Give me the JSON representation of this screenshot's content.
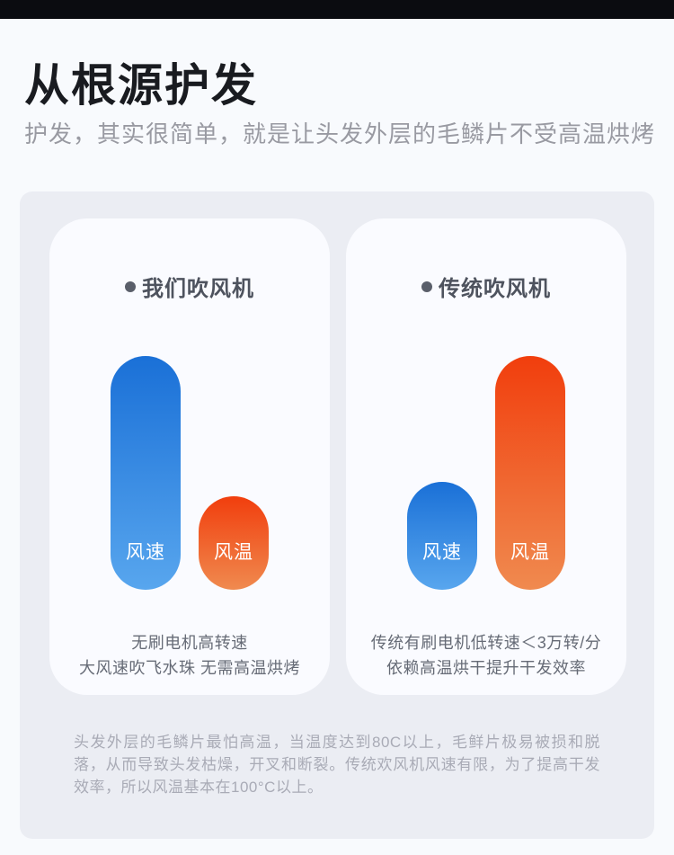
{
  "header": {
    "title": "从根源护发",
    "subtitle": "护发，其实很简单，就是让头发外层的毛鳞片不受高温烘烤"
  },
  "cards": [
    {
      "title": "我们吹风机",
      "bars": [
        {
          "label": "风速",
          "value": 100,
          "color_top": "#1a70d7",
          "color_bottom": "#58a6ee"
        },
        {
          "label": "风温",
          "value": 40,
          "color_top": "#f13e0d",
          "color_bottom": "#f08a4f"
        }
      ],
      "caption_line1": "无刷电机高转速",
      "caption_line2": "大风速吹飞水珠 无需高温烘烤"
    },
    {
      "title": "传统吹风机",
      "bars": [
        {
          "label": "风速",
          "value": 46,
          "color_top": "#1a70d7",
          "color_bottom": "#58a6ee"
        },
        {
          "label": "风温",
          "value": 100,
          "color_top": "#f13e0d",
          "color_bottom": "#f08a4f"
        }
      ],
      "caption_line1": "传统有刷电机低转速＜3万转/分",
      "caption_line2": "依赖高温烘干提升干发效率"
    }
  ],
  "footnote": "头发外层的毛鳞片最怕高温，当温度达到80C以上，毛鲜片极易被损和脱落，从而导致头发枯燥，开叉和断裂。传统欢风机风速有限，为了提高干发效率，所以风温基本在100°C以上。",
  "colors": {
    "accent_blue": "#1a70d7",
    "accent_orange": "#f13e0d",
    "panel_bg": "#ebedf3",
    "card_bg": "#fafbff",
    "topbar": "#0b0c10"
  },
  "chart_data": [
    {
      "type": "bar",
      "title": "我们吹风机",
      "categories": [
        "风速",
        "风温"
      ],
      "values": [
        100,
        40
      ],
      "series_colors": [
        "#1a70d7",
        "#f13e0d"
      ],
      "xlabel": "",
      "ylabel": "",
      "ylim": [
        0,
        100
      ],
      "grid": false,
      "legend": false,
      "note_labels_inside_bars": true
    },
    {
      "type": "bar",
      "title": "传统吹风机",
      "categories": [
        "风速",
        "风温"
      ],
      "values": [
        46,
        100
      ],
      "series_colors": [
        "#1a70d7",
        "#f13e0d"
      ],
      "xlabel": "",
      "ylabel": "",
      "ylim": [
        0,
        100
      ],
      "grid": false,
      "legend": false,
      "note_labels_inside_bars": true
    }
  ]
}
